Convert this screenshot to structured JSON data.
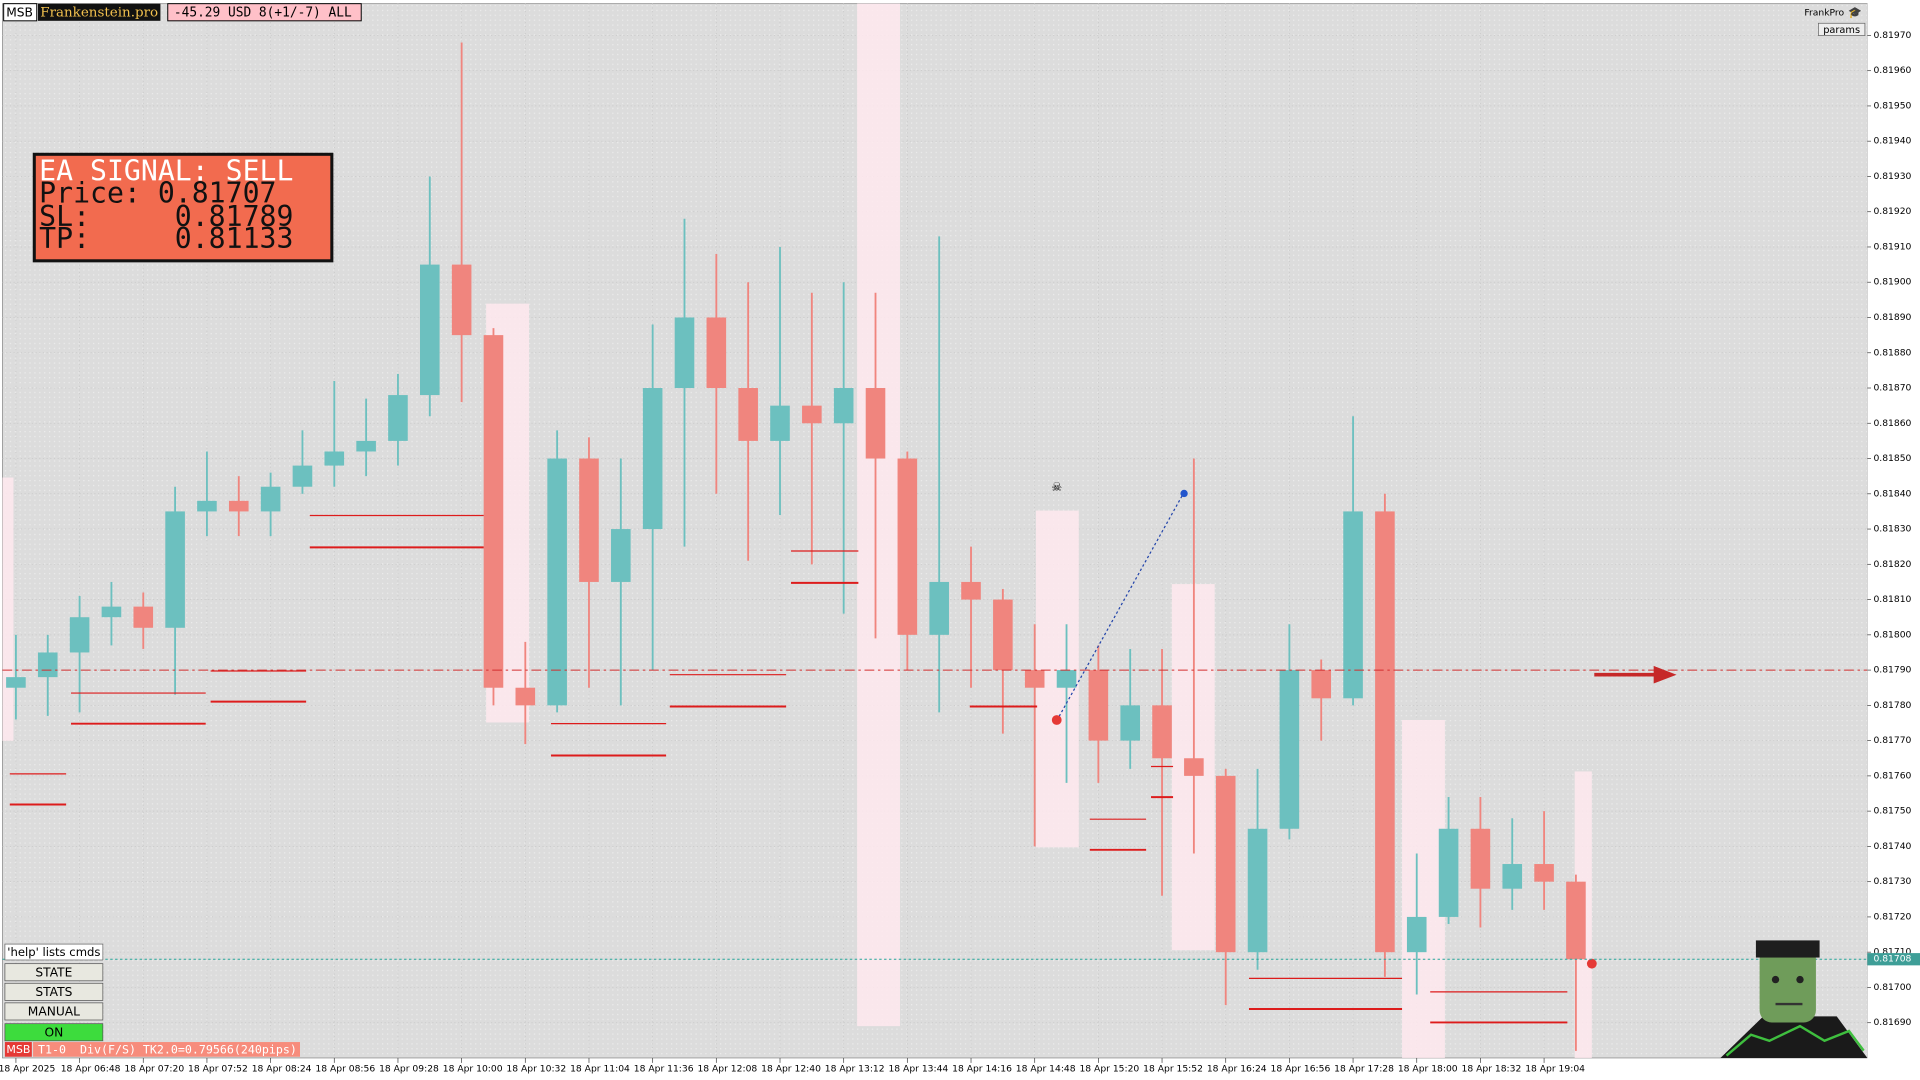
{
  "toolbar": {
    "badge": "MSB",
    "brand": "Frankenstein.pro",
    "account": "-45.29 USD 8(+1/-7) ALL",
    "user": "FrankPro",
    "params": "params"
  },
  "signal_box": {
    "lines": [
      "EA SIGNAL: SELL",
      "Price: 0.81707",
      "SL:     0.81789",
      "TP:     0.81133"
    ]
  },
  "buttons": {
    "help": "'help' lists cmds",
    "items": [
      "STATE",
      "STATS",
      "MANUAL",
      "ON"
    ]
  },
  "status_bar": {
    "badge": "MSB",
    "text": "T1-0  Div(F/S) TK2.0=0.79566(240pips)"
  },
  "chart_data": {
    "type": "candlestick",
    "up_color": "#6cc0bf",
    "down_color": "#f0857e",
    "grid": true,
    "ylim": [
      0.8168,
      0.81979
    ],
    "yticks": [
      {
        "value": 0.8169,
        "label": "0.81690"
      },
      {
        "value": 0.817,
        "label": "0.81700"
      },
      {
        "value": 0.8171,
        "label": "0.81710"
      },
      {
        "value": 0.8172,
        "label": "0.81720"
      },
      {
        "value": 0.8173,
        "label": "0.81730"
      },
      {
        "value": 0.8174,
        "label": "0.81740"
      },
      {
        "value": 0.8175,
        "label": "0.81750"
      },
      {
        "value": 0.8176,
        "label": "0.81760"
      },
      {
        "value": 0.8177,
        "label": "0.81770"
      },
      {
        "value": 0.8178,
        "label": "0.81780"
      },
      {
        "value": 0.8179,
        "label": "0.81790"
      },
      {
        "value": 0.818,
        "label": "0.81800"
      },
      {
        "value": 0.8181,
        "label": "0.81810"
      },
      {
        "value": 0.8182,
        "label": "0.81820"
      },
      {
        "value": 0.8183,
        "label": "0.81830"
      },
      {
        "value": 0.8184,
        "label": "0.81840"
      },
      {
        "value": 0.8185,
        "label": "0.81850"
      },
      {
        "value": 0.8186,
        "label": "0.81860"
      },
      {
        "value": 0.8187,
        "label": "0.81870"
      },
      {
        "value": 0.8188,
        "label": "0.81880"
      },
      {
        "value": 0.8189,
        "label": "0.81890"
      },
      {
        "value": 0.819,
        "label": "0.81900"
      },
      {
        "value": 0.8191,
        "label": "0.81910"
      },
      {
        "value": 0.8192,
        "label": "0.81920"
      },
      {
        "value": 0.8193,
        "label": "0.81930"
      },
      {
        "value": 0.8194,
        "label": "0.81940"
      },
      {
        "value": 0.8195,
        "label": "0.81950"
      },
      {
        "value": 0.8196,
        "label": "0.81960"
      },
      {
        "value": 0.8197,
        "label": "0.81970"
      }
    ],
    "categories": [
      "18 Apr 2025",
      null,
      "18 Apr 06:48",
      null,
      "18 Apr 07:20",
      null,
      "18 Apr 07:52",
      null,
      "18 Apr 08:24",
      null,
      "18 Apr 08:56",
      null,
      "18 Apr 09:28",
      null,
      "18 Apr 10:00",
      null,
      "18 Apr 10:32",
      null,
      "18 Apr 11:04",
      null,
      "18 Apr 11:36",
      null,
      "18 Apr 12:08",
      null,
      "18 Apr 12:40",
      null,
      "18 Apr 13:12",
      null,
      "18 Apr 13:44",
      null,
      "18 Apr 14:16",
      null,
      "18 Apr 14:48",
      null,
      "18 Apr 15:20",
      null,
      "18 Apr 15:52",
      null,
      "18 Apr 16:24",
      null,
      "18 Apr 16:56",
      null,
      "18 Apr 17:28",
      null,
      "18 Apr 18:00",
      null,
      "18 Apr 18:32",
      null,
      "18 Apr 19:04",
      null
    ],
    "open": [
      0.81785,
      0.81788,
      0.81795,
      0.81805,
      0.81808,
      0.81802,
      0.81835,
      0.81838,
      0.81835,
      0.81842,
      0.81848,
      0.81852,
      0.81855,
      0.81868,
      0.81905,
      0.81885,
      0.81785,
      0.8178,
      0.8185,
      0.81815,
      0.8183,
      0.8187,
      0.8189,
      0.8187,
      0.81855,
      0.81865,
      0.8186,
      0.8187,
      0.8185,
      0.818,
      0.81815,
      0.8181,
      0.8179,
      0.81785,
      0.8179,
      0.8177,
      0.8178,
      0.81765,
      0.8176,
      0.8171,
      0.81745,
      0.8179,
      0.81782,
      0.81835,
      0.8171,
      0.8172,
      0.81745,
      0.81728,
      0.81735,
      0.8173
    ],
    "high": [
      0.818,
      0.818,
      0.81811,
      0.81815,
      0.81812,
      0.81842,
      0.81852,
      0.81845,
      0.81846,
      0.81858,
      0.81872,
      0.81867,
      0.81874,
      0.8193,
      0.81968,
      0.81887,
      0.81798,
      0.81858,
      0.81856,
      0.8185,
      0.81888,
      0.81918,
      0.81908,
      0.819,
      0.8191,
      0.81897,
      0.819,
      0.81897,
      0.81852,
      0.81913,
      0.81825,
      0.81813,
      0.81803,
      0.81803,
      0.81797,
      0.81796,
      0.81796,
      0.8185,
      0.81762,
      0.81762,
      0.81803,
      0.81793,
      0.81862,
      0.8184,
      0.81738,
      0.81754,
      0.81754,
      0.81748,
      0.8175,
      0.81732
    ],
    "low": [
      0.81776,
      0.81777,
      0.81778,
      0.81797,
      0.81796,
      0.81783,
      0.81828,
      0.81828,
      0.81828,
      0.8184,
      0.81842,
      0.81845,
      0.81848,
      0.81862,
      0.81866,
      0.8178,
      0.81769,
      0.81778,
      0.81785,
      0.8178,
      0.8179,
      0.81825,
      0.8184,
      0.81821,
      0.81834,
      0.8182,
      0.81806,
      0.81799,
      0.8179,
      0.81778,
      0.81785,
      0.81772,
      0.8174,
      0.81758,
      0.81758,
      0.81762,
      0.81726,
      0.81738,
      0.81695,
      0.81705,
      0.81742,
      0.8177,
      0.8178,
      0.81703,
      0.81698,
      0.81718,
      0.81717,
      0.81722,
      0.81722,
      0.81682
    ],
    "close": [
      0.81788,
      0.81795,
      0.81805,
      0.81808,
      0.81802,
      0.81835,
      0.81838,
      0.81835,
      0.81842,
      0.81848,
      0.81852,
      0.81855,
      0.81868,
      0.81905,
      0.81885,
      0.81785,
      0.8178,
      0.8185,
      0.81815,
      0.8183,
      0.8187,
      0.8189,
      0.8187,
      0.81855,
      0.81865,
      0.8186,
      0.8187,
      0.8185,
      0.818,
      0.81815,
      0.8181,
      0.8179,
      0.81785,
      0.8179,
      0.8177,
      0.8178,
      0.81765,
      0.8176,
      0.8171,
      0.81745,
      0.8179,
      0.81782,
      0.81835,
      0.8171,
      0.8172,
      0.81745,
      0.81728,
      0.81735,
      0.8173,
      0.81708
    ],
    "signal_level": 0.8179,
    "current_price": 0.81708,
    "current_price_label": "0.81708"
  }
}
